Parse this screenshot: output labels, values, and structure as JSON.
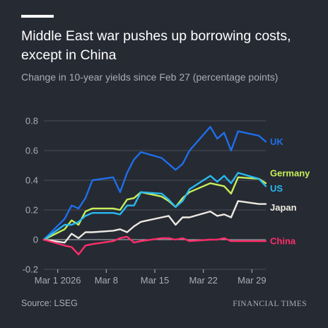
{
  "header": {
    "title": "Middle East war pushes up borrowing costs, except in China",
    "subtitle": "Change in 10-year yields since Feb 27 (percentage points)"
  },
  "footer": {
    "source": "Source: LSEG",
    "brand": "FINANCIAL TIMES"
  },
  "colors": {
    "background": "#262a33",
    "grid": "#4a4e57",
    "zero_line": "#b8bbc1",
    "text_muted": "#a9adb4"
  },
  "chart_data": {
    "type": "line",
    "title": "Middle East war pushes up borrowing costs, except in China",
    "subtitle": "Change in 10-year yields since Feb 27 (percentage points)",
    "xlabel": "",
    "ylabel": "",
    "grid": "horizontal",
    "xlim": [
      "2026-02-27",
      "2026-03-31"
    ],
    "ylim": [
      -0.2,
      0.8
    ],
    "yticks": [
      -0.2,
      0,
      0.2,
      0.4,
      0.6,
      0.8
    ],
    "ytick_labels": [
      "-0.2",
      "0",
      "0.2",
      "0.4",
      "0.6",
      "0.8"
    ],
    "xticks": [
      "2026-03-01",
      "2026-03-08",
      "2026-03-15",
      "2026-03-22",
      "2026-03-29"
    ],
    "xtick_labels": [
      "Mar 1 2026",
      "Mar 8",
      "Mar 15",
      "Mar 22",
      "Mar 29"
    ],
    "x": [
      "2026-02-27",
      "2026-03-02",
      "2026-03-03",
      "2026-03-04",
      "2026-03-05",
      "2026-03-06",
      "2026-03-09",
      "2026-03-10",
      "2026-03-11",
      "2026-03-12",
      "2026-03-13",
      "2026-03-16",
      "2026-03-17",
      "2026-03-18",
      "2026-03-19",
      "2026-03-20",
      "2026-03-23",
      "2026-03-24",
      "2026-03-25",
      "2026-03-26",
      "2026-03-27",
      "2026-03-30",
      "2026-03-31"
    ],
    "series": [
      {
        "name": "UK",
        "color": "#1f6feb",
        "values": [
          0,
          0.14,
          0.23,
          0.21,
          0.28,
          0.4,
          0.42,
          0.32,
          0.45,
          0.54,
          0.59,
          0.55,
          0.51,
          0.47,
          0.51,
          0.6,
          0.76,
          0.68,
          0.72,
          0.6,
          0.73,
          0.7,
          0.66
        ]
      },
      {
        "name": "Germany",
        "color": "#c6f05a",
        "values": [
          0,
          0.07,
          0.13,
          0.1,
          0.19,
          0.21,
          0.21,
          0.2,
          0.27,
          0.28,
          0.32,
          0.29,
          0.26,
          0.22,
          0.28,
          0.32,
          0.38,
          0.37,
          0.36,
          0.31,
          0.42,
          0.41,
          0.38
        ]
      },
      {
        "name": "US",
        "color": "#28b9f0",
        "values": [
          0,
          0.1,
          0.1,
          0.12,
          0.16,
          0.18,
          0.18,
          0.17,
          0.23,
          0.23,
          0.32,
          0.31,
          0.27,
          0.22,
          0.26,
          0.34,
          0.43,
          0.39,
          0.43,
          0.38,
          0.45,
          0.41,
          0.36
        ]
      },
      {
        "name": "Japan",
        "color": "#eeeae2",
        "values": [
          0,
          -0.02,
          0.04,
          0.01,
          0.05,
          0.05,
          0.06,
          0.07,
          0.05,
          0.09,
          0.12,
          0.15,
          0.16,
          0.1,
          0.15,
          0.15,
          0.19,
          0.16,
          0.17,
          0.15,
          0.26,
          0.24,
          0.24
        ]
      },
      {
        "name": "China",
        "color": "#ff2d6a",
        "values": [
          0,
          -0.04,
          -0.05,
          -0.1,
          -0.04,
          -0.03,
          -0.01,
          0.01,
          0.02,
          -0.02,
          -0.01,
          0.01,
          0.01,
          0.0,
          0.01,
          -0.01,
          0.0,
          0.0,
          0.01,
          -0.01,
          -0.01,
          -0.01,
          -0.01
        ]
      }
    ]
  }
}
